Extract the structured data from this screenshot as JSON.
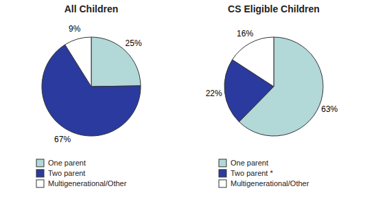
{
  "chart_data": [
    {
      "type": "pie",
      "title": "All Children",
      "categories": [
        "One parent",
        "Two parent",
        "Multigenerational/Other"
      ],
      "values": [
        25,
        67,
        9
      ],
      "value_labels": [
        "25%",
        "67%",
        "9%"
      ],
      "colors": [
        "#b2d8d8",
        "#2b3a9e",
        "#ffffff"
      ],
      "data_labels": true,
      "legend": "bottom"
    },
    {
      "type": "pie",
      "title": "CS Eligible Children",
      "categories": [
        "One parent",
        "Two parent *",
        "Multigenerational/Other"
      ],
      "values": [
        63,
        22,
        16
      ],
      "value_labels": [
        "63%",
        "22%",
        "16%"
      ],
      "colors": [
        "#b2d8d8",
        "#2b3a9e",
        "#ffffff"
      ],
      "data_labels": true,
      "legend": "bottom"
    }
  ]
}
